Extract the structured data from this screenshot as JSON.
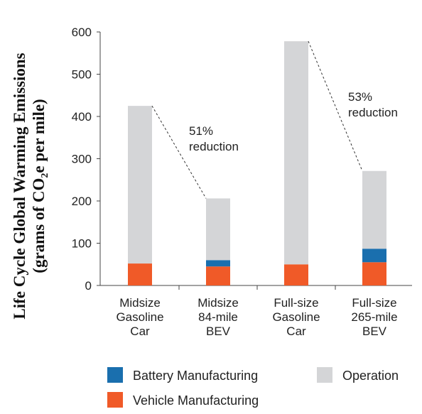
{
  "chart_data": {
    "type": "bar",
    "stacked": true,
    "ylabel_line1": "Life Cycle Global Warming Emissions",
    "ylabel_line2_prefix": "(grams of CO",
    "ylabel_line2_sub": "2",
    "ylabel_line2_suffix": "e per mile)",
    "ylim": [
      0,
      600
    ],
    "yticks": [
      "0",
      "100",
      "200",
      "300",
      "400",
      "500",
      "600"
    ],
    "categories": [
      [
        "Midsize",
        "Gasoline",
        "Car"
      ],
      [
        "Midsize",
        "84-mile",
        "BEV"
      ],
      [
        "Full-size",
        "Gasoline",
        "Car"
      ],
      [
        "Full-size",
        "265-mile",
        "BEV"
      ]
    ],
    "series": [
      {
        "name": "Vehicle Manufacturing",
        "color": "#f05a28",
        "values": [
          52,
          45,
          50,
          55
        ]
      },
      {
        "name": "Battery Manufacturing",
        "color": "#1a6fae",
        "values": [
          0,
          15,
          0,
          32
        ]
      },
      {
        "name": "Operation",
        "color": "#d4d5d7",
        "values": [
          373,
          146,
          528,
          184
        ]
      }
    ],
    "annotations": [
      {
        "from": 0,
        "to": 1,
        "lines": [
          "51%",
          "reduction"
        ]
      },
      {
        "from": 2,
        "to": 3,
        "lines": [
          "53%",
          "reduction"
        ]
      }
    ],
    "legend": [
      {
        "label": "Battery Manufacturing",
        "color": "#1a6fae"
      },
      {
        "label": "Operation",
        "color": "#d4d5d7"
      },
      {
        "label": "Vehicle Manufacturing",
        "color": "#f05a28"
      }
    ],
    "legend_position": "bottom"
  }
}
